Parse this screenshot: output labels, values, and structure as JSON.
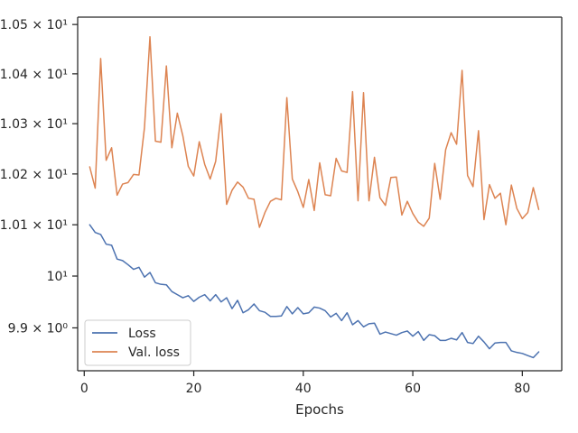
{
  "chart_data": {
    "type": "line",
    "title": "",
    "xlabel": "Epochs",
    "ylabel": "",
    "y_scale": "log",
    "xlim": [
      -1.2,
      87.2
    ],
    "ylim": [
      9.818,
      10.515
    ],
    "xticks": [
      0,
      20,
      40,
      60,
      80
    ],
    "xtick_labels": [
      "0",
      "20",
      "40",
      "60",
      "80"
    ],
    "yticks": [
      9.9,
      10.0,
      10.1,
      10.2,
      10.3,
      10.4,
      10.5
    ],
    "ytick_labels": [
      "9.9 × 10⁰",
      "10¹",
      "1.01 × 10¹",
      "1.02 × 10¹",
      "1.03 × 10¹",
      "1.04 × 10¹",
      "1.05 × 10¹"
    ],
    "grid": false,
    "legend_position": "bottom-left",
    "x": [
      1,
      2,
      3,
      4,
      5,
      6,
      7,
      8,
      9,
      10,
      11,
      12,
      13,
      14,
      15,
      16,
      17,
      18,
      19,
      20,
      21,
      22,
      23,
      24,
      25,
      26,
      27,
      28,
      29,
      30,
      31,
      32,
      33,
      34,
      35,
      36,
      37,
      38,
      39,
      40,
      41,
      42,
      43,
      44,
      45,
      46,
      47,
      48,
      49,
      50,
      51,
      52,
      53,
      54,
      55,
      56,
      57,
      58,
      59,
      60,
      61,
      62,
      63,
      64,
      65,
      66,
      67,
      68,
      69,
      70,
      71,
      72,
      73,
      74,
      75,
      76,
      77,
      78,
      79,
      80,
      81,
      82,
      83
    ],
    "series": [
      {
        "name": "Loss",
        "color": "#4c72b0",
        "values": [
          10.1,
          10.085,
          10.081,
          10.062,
          10.06,
          10.033,
          10.03,
          10.022,
          10.013,
          10.017,
          9.998,
          10.007,
          9.987,
          9.984,
          9.983,
          9.97,
          9.964,
          9.958,
          9.962,
          9.951,
          9.959,
          9.964,
          9.952,
          9.964,
          9.95,
          9.958,
          9.937,
          9.953,
          9.929,
          9.935,
          9.946,
          9.933,
          9.93,
          9.922,
          9.922,
          9.923,
          9.941,
          9.927,
          9.939,
          9.927,
          9.929,
          9.94,
          9.938,
          9.933,
          9.921,
          9.928,
          9.914,
          9.929,
          9.906,
          9.914,
          9.902,
          9.908,
          9.909,
          9.888,
          9.892,
          9.889,
          9.886,
          9.891,
          9.894,
          9.884,
          9.893,
          9.876,
          9.887,
          9.885,
          9.876,
          9.876,
          9.88,
          9.877,
          9.891,
          9.872,
          9.87,
          9.884,
          9.873,
          9.86,
          9.871,
          9.872,
          9.872,
          9.856,
          9.853,
          9.851,
          9.847,
          9.843,
          9.854
        ]
      },
      {
        "name": "Val. loss",
        "color": "#dd8452",
        "values": [
          10.214,
          10.172,
          10.431,
          10.227,
          10.252,
          10.158,
          10.18,
          10.183,
          10.199,
          10.198,
          10.292,
          10.475,
          10.265,
          10.263,
          10.416,
          10.252,
          10.321,
          10.276,
          10.215,
          10.196,
          10.264,
          10.219,
          10.19,
          10.225,
          10.32,
          10.14,
          10.168,
          10.184,
          10.174,
          10.152,
          10.15,
          10.095,
          10.124,
          10.146,
          10.152,
          10.149,
          10.352,
          10.19,
          10.165,
          10.134,
          10.189,
          10.128,
          10.222,
          10.159,
          10.157,
          10.231,
          10.206,
          10.203,
          10.364,
          10.147,
          10.362,
          10.147,
          10.233,
          10.153,
          10.138,
          10.193,
          10.194,
          10.119,
          10.146,
          10.122,
          10.105,
          10.097,
          10.113,
          10.221,
          10.15,
          10.248,
          10.282,
          10.259,
          10.407,
          10.197,
          10.175,
          10.286,
          10.11,
          10.179,
          10.152,
          10.162,
          10.1,
          10.178,
          10.132,
          10.112,
          10.124,
          10.173,
          10.13
        ]
      }
    ]
  }
}
